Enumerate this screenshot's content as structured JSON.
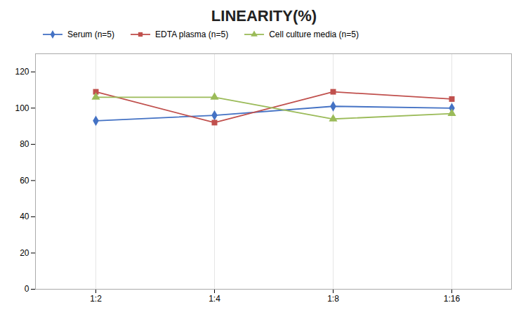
{
  "chart_data": {
    "type": "line",
    "title": "LINEARITY(%)",
    "categories": [
      "1:2",
      "1:4",
      "1:8",
      "1:16"
    ],
    "series": [
      {
        "name": "Serum (n=5)",
        "color": "#4472C4",
        "values": [
          93,
          96,
          101,
          100
        ],
        "marker": "diamond"
      },
      {
        "name": "EDTA plasma (n=5)",
        "color": "#C0504D",
        "values": [
          109,
          92,
          109,
          105
        ],
        "marker": "square"
      },
      {
        "name": "Cell culture media (n=5)",
        "color": "#9BBB59",
        "values": [
          106,
          106,
          94,
          97
        ],
        "marker": "triangle"
      }
    ],
    "ylim": [
      0,
      130
    ],
    "yticks": [
      0,
      20,
      40,
      60,
      80,
      100,
      120
    ],
    "grid": "x",
    "legend": "top"
  }
}
